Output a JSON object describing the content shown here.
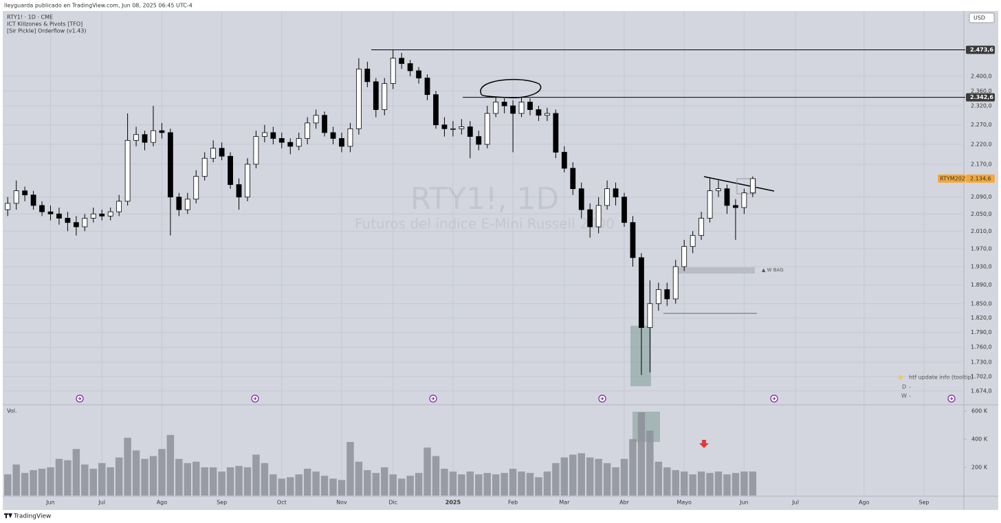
{
  "header": {
    "publisher": "lleyguarda publicado en TradingView.com, Jun 08, 2025 06:45 UTC-4",
    "currency": "USD",
    "symbol_line": "RTY1! · 1D · CME",
    "indicators": [
      "ICT Killzones & Pivots [TFO]",
      "[Sir Pickle] Orderflow (v1.43)"
    ],
    "watermark_symbol": "RTY1!, 1D",
    "watermark_desc": "Futuros del índice E-Mini Russell 2000"
  },
  "chart_data": [
    {
      "type": "candlestick",
      "log_scale": true,
      "grid": true,
      "up_color": "#ffffff",
      "down_color": "#000000",
      "wick_color": "#000000",
      "categories": [
        null,
        null,
        null,
        null,
        null,
        "Jun",
        null,
        null,
        null,
        null,
        null,
        "Jul",
        null,
        null,
        null,
        null,
        null,
        null,
        "Ago",
        null,
        null,
        null,
        null,
        null,
        null,
        "Sep",
        null,
        null,
        null,
        null,
        null,
        null,
        "Oct",
        null,
        null,
        null,
        null,
        null,
        null,
        "Nov",
        null,
        null,
        null,
        null,
        null,
        "Dic",
        null,
        null,
        null,
        null,
        null,
        null,
        "2025",
        null,
        null,
        null,
        null,
        null,
        null,
        "Feb",
        null,
        null,
        null,
        null,
        null,
        "Mar",
        null,
        null,
        null,
        null,
        null,
        null,
        "Abr",
        null,
        null,
        null,
        null,
        null,
        null,
        "Mayo",
        null,
        null,
        null,
        null,
        null,
        null,
        "Jun",
        null,
        null,
        null,
        null,
        null,
        "Jul",
        null,
        null,
        null,
        null,
        null,
        null,
        null,
        "Ago",
        null,
        null,
        null,
        null,
        null,
        null,
        "Sep",
        null,
        null,
        null,
        null
      ],
      "open": [
        2060,
        2075,
        2105,
        2095,
        2070,
        2055,
        2050,
        2040,
        2030,
        2020,
        2040,
        2050,
        2045,
        2055,
        2080,
        2230,
        2245,
        2225,
        2255,
        2250,
        2090,
        2060,
        2085,
        2140,
        2185,
        2210,
        2190,
        2120,
        2090,
        2170,
        2240,
        2250,
        2235,
        2225,
        2215,
        2235,
        2275,
        2295,
        2250,
        2235,
        2215,
        2260,
        2420,
        2385,
        2310,
        2380,
        2450,
        2435,
        2415,
        2395,
        2350,
        2270,
        2260,
        2260,
        2265,
        2240,
        2220,
        2300,
        2330,
        2320,
        2300,
        2330,
        2310,
        2295,
        2300,
        2200,
        2160,
        2110,
        2060,
        2020,
        2070,
        2110,
        2090,
        2030,
        1950,
        1800,
        1850,
        1880,
        1860,
        1930,
        1975,
        2000,
        2040,
        2105,
        2110,
        2070,
        2065,
        2100,
        null,
        null,
        null,
        null,
        null,
        null,
        null,
        null,
        null,
        null,
        null,
        null,
        null,
        null,
        null,
        null,
        null,
        null,
        null,
        null,
        null,
        null,
        null,
        null
      ],
      "high": [
        2090,
        2130,
        2115,
        2105,
        2080,
        2070,
        2065,
        2055,
        2045,
        2050,
        2065,
        2060,
        2065,
        2095,
        2300,
        2265,
        2255,
        2320,
        2275,
        2260,
        2100,
        2100,
        2155,
        2200,
        2230,
        2225,
        2200,
        2135,
        2185,
        2255,
        2270,
        2265,
        2250,
        2235,
        2250,
        2290,
        2310,
        2305,
        2265,
        2250,
        2275,
        2450,
        2440,
        2395,
        2395,
        2473,
        2465,
        2445,
        2425,
        2405,
        2360,
        2290,
        2280,
        2285,
        2280,
        2255,
        2320,
        2342,
        2340,
        2335,
        2342,
        2340,
        2320,
        2315,
        2310,
        2215,
        2175,
        2125,
        2075,
        2090,
        2130,
        2125,
        2100,
        2045,
        1960,
        1900,
        1895,
        1895,
        1945,
        1990,
        2010,
        2055,
        2135,
        2130,
        2120,
        2085,
        2110,
        2140,
        null,
        null,
        null,
        null,
        null,
        null,
        null,
        null,
        null,
        null,
        null,
        null,
        null,
        null,
        null,
        null,
        null,
        null,
        null,
        null,
        null,
        null,
        null,
        null
      ],
      "low": [
        2045,
        2060,
        2080,
        2060,
        2045,
        2035,
        2025,
        2010,
        2000,
        2010,
        2030,
        2035,
        2035,
        2045,
        2070,
        2215,
        2205,
        2215,
        2235,
        2000,
        2045,
        2050,
        2075,
        2130,
        2175,
        2180,
        2110,
        2060,
        2080,
        2160,
        2225,
        2220,
        2210,
        2195,
        2205,
        2220,
        2260,
        2240,
        2220,
        2200,
        2200,
        2245,
        2370,
        2290,
        2295,
        2365,
        2420,
        2400,
        2380,
        2335,
        2260,
        2240,
        2240,
        2245,
        2185,
        2205,
        2210,
        2290,
        2300,
        2200,
        2290,
        2295,
        2280,
        2280,
        2185,
        2150,
        2095,
        2040,
        1995,
        2005,
        2060,
        2070,
        2020,
        1930,
        1705,
        1710,
        1835,
        1845,
        1850,
        1920,
        1960,
        1990,
        2030,
        2090,
        2050,
        1990,
        2050,
        2090,
        null,
        null,
        null,
        null,
        null,
        null,
        null,
        null,
        null,
        null,
        null,
        null,
        null,
        null,
        null,
        null,
        null,
        null,
        null,
        null,
        null,
        null,
        null,
        null
      ],
      "close": [
        2075,
        2105,
        2095,
        2070,
        2055,
        2050,
        2040,
        2030,
        2020,
        2040,
        2050,
        2045,
        2055,
        2080,
        2230,
        2245,
        2225,
        2255,
        2250,
        2090,
        2060,
        2085,
        2140,
        2185,
        2210,
        2190,
        2120,
        2090,
        2170,
        2240,
        2250,
        2235,
        2225,
        2215,
        2235,
        2275,
        2295,
        2250,
        2235,
        2215,
        2260,
        2420,
        2385,
        2310,
        2380,
        2450,
        2435,
        2415,
        2395,
        2350,
        2270,
        2260,
        2260,
        2265,
        2240,
        2220,
        2300,
        2330,
        2320,
        2300,
        2330,
        2310,
        2295,
        2300,
        2200,
        2160,
        2110,
        2060,
        2020,
        2070,
        2110,
        2090,
        2030,
        1950,
        1800,
        1850,
        1880,
        1860,
        1930,
        1975,
        2000,
        2040,
        2105,
        2110,
        2070,
        2065,
        2100,
        2134.6,
        null,
        null,
        null,
        null,
        null,
        null,
        null,
        null,
        null,
        null,
        null,
        null,
        null,
        null,
        null,
        null,
        null,
        null,
        null,
        null,
        null,
        null,
        null,
        null
      ],
      "ylim": [
        1649,
        2584
      ],
      "yticks": [
        {
          "value": 2400,
          "label": "2.400,0"
        },
        {
          "value": 2360,
          "label": "2.360,0"
        },
        {
          "value": 2320,
          "label": "2.320,0"
        },
        {
          "value": 2270,
          "label": "2.270,0"
        },
        {
          "value": 2220,
          "label": "2.220,0"
        },
        {
          "value": 2170,
          "label": "2.170,0"
        },
        {
          "value": 2090,
          "label": "2.090,0"
        },
        {
          "value": 2050,
          "label": "2.050,0"
        },
        {
          "value": 2010,
          "label": "2.010,0"
        },
        {
          "value": 1970,
          "label": "1.970,0"
        },
        {
          "value": 1930,
          "label": "1.930,0"
        },
        {
          "value": 1890,
          "label": "1.890,0"
        },
        {
          "value": 1850,
          "label": "1.850,0"
        },
        {
          "value": 1820,
          "label": "1.820,0"
        },
        {
          "value": 1790,
          "label": "1.790,0"
        },
        {
          "value": 1760,
          "label": "1.760,0"
        },
        {
          "value": 1730,
          "label": "1.730,0"
        },
        {
          "value": 1702,
          "label": "1.702,0"
        },
        {
          "value": 1674,
          "label": "1.674,0"
        }
      ],
      "levels": [
        {
          "value": 2473.6,
          "label": "2.473,6"
        },
        {
          "value": 2342.6,
          "label": "2.342,6"
        }
      ],
      "last_price": {
        "name": "RTYM2025",
        "value": 2134.6,
        "label": "2.134,6"
      },
      "annotations": [
        "▲ W BAG"
      ]
    },
    {
      "type": "bar",
      "title": "Vol.",
      "color": "#8d909a",
      "values": [
        150000,
        220000,
        160000,
        180000,
        190000,
        200000,
        260000,
        250000,
        330000,
        220000,
        190000,
        230000,
        200000,
        270000,
        410000,
        320000,
        260000,
        280000,
        330000,
        430000,
        260000,
        230000,
        240000,
        200000,
        200000,
        170000,
        200000,
        210000,
        200000,
        290000,
        230000,
        150000,
        120000,
        130000,
        150000,
        190000,
        170000,
        140000,
        120000,
        110000,
        380000,
        240000,
        180000,
        160000,
        200000,
        150000,
        120000,
        140000,
        160000,
        340000,
        280000,
        190000,
        170000,
        150000,
        170000,
        150000,
        160000,
        150000,
        160000,
        190000,
        170000,
        160000,
        130000,
        170000,
        230000,
        270000,
        290000,
        300000,
        270000,
        260000,
        230000,
        200000,
        260000,
        400000,
        590000,
        460000,
        240000,
        200000,
        180000,
        170000,
        150000,
        170000,
        160000,
        170000,
        150000,
        160000,
        170000,
        170000
      ],
      "ylim": [
        0,
        629000
      ],
      "yticks": [
        {
          "value": 600000,
          "label": "600 K"
        },
        {
          "value": 400000,
          "label": "400 K"
        },
        {
          "value": 200000,
          "label": "200 K"
        }
      ]
    }
  ],
  "legend_box": {
    "title": "htf update info (tooltip)",
    "rows": [
      [
        "D",
        "-"
      ],
      [
        "W",
        "-"
      ]
    ]
  },
  "footer": "TradingView"
}
